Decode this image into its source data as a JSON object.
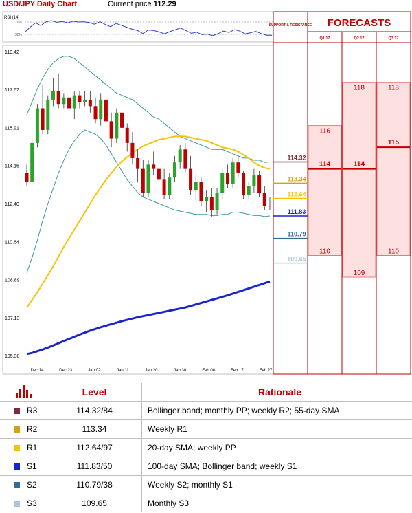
{
  "header": {
    "title": "USD/JPY Daily Chart",
    "price_label": "Current price",
    "price_value": "112.29"
  },
  "colors": {
    "red": "#c00000",
    "sma20": "#f5c400",
    "sma100": "#1a24c8",
    "bollinger": "#3a9aa0",
    "candle_up": "#2aa52a",
    "candle_down": "#c00000"
  },
  "chart_data": {
    "type": "line",
    "title": "USD/JPY Daily Chart",
    "rsi_panel": {
      "label": "RSI (14)",
      "ticks": [
        "70%",
        "30%"
      ]
    },
    "y_ticks": [
      "119.42",
      "117.67",
      "115.91",
      "114.16",
      "112.40",
      "110.64",
      "108.89",
      "107.13",
      "105.38"
    ],
    "ylim": [
      105.38,
      119.42
    ],
    "x_ticks": [
      "Dec 14",
      "Dec 23",
      "Jan 02",
      "Jan 11",
      "Jan 20",
      "Jan 30",
      "Feb 08",
      "Feb 17",
      "Feb 27"
    ],
    "candles": [
      [
        113.8,
        114.2,
        113.2,
        113.4
      ],
      [
        113.4,
        115.4,
        113.4,
        115.2
      ],
      [
        115.2,
        117.0,
        115.0,
        116.8
      ],
      [
        116.8,
        117.9,
        115.6,
        115.8
      ],
      [
        115.8,
        117.4,
        115.6,
        117.2
      ],
      [
        117.2,
        118.2,
        116.9,
        117.6
      ],
      [
        117.6,
        118.4,
        116.8,
        117.0
      ],
      [
        117.0,
        117.5,
        116.8,
        117.3
      ],
      [
        117.3,
        117.8,
        116.6,
        116.8
      ],
      [
        116.8,
        117.6,
        116.3,
        117.4
      ],
      [
        117.4,
        117.6,
        116.8,
        117.1
      ],
      [
        117.1,
        117.6,
        116.9,
        117.2
      ],
      [
        117.2,
        117.6,
        116.6,
        116.9
      ],
      [
        116.9,
        117.3,
        116.1,
        116.3
      ],
      [
        116.3,
        117.5,
        116.0,
        117.2
      ],
      [
        117.2,
        118.5,
        116.0,
        116.2
      ],
      [
        116.2,
        116.6,
        115.0,
        115.4
      ],
      [
        115.4,
        116.8,
        115.2,
        116.6
      ],
      [
        116.6,
        117.0,
        115.6,
        115.9
      ],
      [
        115.9,
        116.1,
        114.8,
        115.2
      ],
      [
        115.2,
        115.7,
        114.2,
        114.5
      ],
      [
        114.5,
        114.9,
        113.4,
        114.0
      ],
      [
        114.0,
        114.4,
        112.7,
        112.9
      ],
      [
        112.9,
        114.4,
        112.7,
        114.2
      ],
      [
        114.2,
        114.8,
        113.7,
        114.0
      ],
      [
        114.0,
        114.9,
        113.2,
        113.5
      ],
      [
        113.5,
        114.0,
        112.6,
        112.8
      ],
      [
        112.8,
        113.8,
        112.6,
        113.6
      ],
      [
        113.6,
        114.6,
        113.4,
        114.3
      ],
      [
        114.3,
        115.1,
        114.0,
        114.9
      ],
      [
        114.9,
        115.2,
        113.8,
        114.0
      ],
      [
        114.0,
        114.6,
        112.8,
        113.0
      ],
      [
        113.0,
        113.7,
        112.6,
        113.4
      ],
      [
        113.4,
        113.6,
        112.3,
        112.5
      ],
      [
        112.5,
        113.0,
        112.0,
        112.7
      ],
      [
        112.7,
        113.1,
        111.8,
        112.1
      ],
      [
        112.1,
        113.1,
        111.9,
        112.9
      ],
      [
        112.9,
        114.0,
        112.6,
        113.8
      ],
      [
        113.8,
        114.2,
        113.1,
        113.3
      ],
      [
        113.3,
        114.5,
        113.1,
        114.3
      ],
      [
        114.3,
        114.6,
        113.6,
        113.8
      ],
      [
        113.8,
        113.9,
        112.6,
        112.8
      ],
      [
        112.8,
        113.4,
        112.6,
        113.2
      ],
      [
        113.2,
        114.0,
        112.9,
        113.7
      ],
      [
        113.7,
        113.9,
        112.7,
        112.9
      ],
      [
        112.9,
        113.2,
        112.1,
        112.3
      ],
      [
        112.3,
        112.7,
        112.1,
        112.29
      ]
    ],
    "sma20": [
      107.6,
      107.95,
      108.3,
      108.7,
      109.1,
      109.5,
      109.95,
      110.4,
      110.8,
      111.2,
      111.6,
      112.0,
      112.4,
      112.8,
      113.15,
      113.5,
      113.8,
      114.1,
      114.35,
      114.55,
      114.75,
      114.9,
      115.05,
      115.15,
      115.25,
      115.35,
      115.4,
      115.45,
      115.5,
      115.5,
      115.5,
      115.45,
      115.4,
      115.35,
      115.3,
      115.2,
      115.1,
      115.0,
      114.95,
      114.9,
      114.8,
      114.65,
      114.5,
      114.3,
      114.15,
      114.05,
      114.0
    ],
    "sma100": [
      105.45,
      105.5,
      105.58,
      105.66,
      105.75,
      105.85,
      105.95,
      106.05,
      106.15,
      106.25,
      106.35,
      106.44,
      106.53,
      106.61,
      106.69,
      106.76,
      106.83,
      106.9,
      106.97,
      107.03,
      107.09,
      107.15,
      107.2,
      107.25,
      107.3,
      107.35,
      107.4,
      107.45,
      107.5,
      107.55,
      107.6,
      107.67,
      107.74,
      107.81,
      107.88,
      107.95,
      108.02,
      108.09,
      108.16,
      108.24,
      108.32,
      108.4,
      108.48,
      108.56,
      108.64,
      108.72,
      108.8
    ],
    "bb_upper": [
      116.5,
      117.1,
      117.7,
      118.2,
      118.6,
      118.9,
      119.1,
      119.2,
      119.2,
      119.1,
      118.9,
      118.7,
      118.5,
      118.3,
      118.1,
      117.9,
      117.7,
      117.5,
      117.4,
      117.3,
      117.2,
      117.0,
      116.8,
      116.6,
      116.4,
      116.3,
      116.1,
      115.9,
      115.7,
      115.5,
      115.4,
      115.3,
      115.2,
      115.1,
      115.0,
      114.9,
      114.9,
      114.9,
      114.8,
      114.7,
      114.6,
      114.5,
      114.5,
      114.4,
      114.4,
      114.3,
      114.32
    ],
    "bb_lower": [
      109.2,
      109.9,
      110.7,
      111.6,
      112.4,
      113.1,
      113.8,
      114.4,
      114.9,
      115.3,
      115.6,
      115.8,
      115.7,
      115.6,
      115.4,
      115.1,
      114.7,
      114.3,
      113.9,
      113.5,
      113.2,
      112.9,
      112.7,
      112.6,
      112.5,
      112.4,
      112.3,
      112.2,
      112.1,
      112.05,
      112.0,
      111.95,
      111.9,
      111.9,
      111.9,
      111.85,
      111.85,
      111.9,
      111.9,
      112.0,
      112.0,
      111.95,
      111.9,
      111.85,
      111.85,
      111.8,
      111.83
    ],
    "levels": [
      {
        "value": "114.32",
        "color": "#7b2c34"
      },
      {
        "value": "113.34",
        "color": "#d4a017"
      },
      {
        "value": "112.64",
        "color": "#f5c400"
      },
      {
        "value": "111.83",
        "color": "#1a24c8"
      },
      {
        "value": "110.79",
        "color": "#2e6f9a"
      },
      {
        "value": "109.65",
        "color": "#a9c7d8"
      }
    ],
    "forecasts": {
      "title": "FORECASTS",
      "support_label": "SUPPORT & RESISTANCE",
      "columns": [
        {
          "label": "Q1 17",
          "high": "116",
          "avg": "114",
          "low": "110"
        },
        {
          "label": "Q2 17",
          "high": "118",
          "avg": "114",
          "low": "109"
        },
        {
          "label": "Q3 17",
          "high": "118",
          "avg": "115",
          "low": "110"
        }
      ]
    }
  },
  "table": {
    "headers": {
      "level": "Level",
      "rationale": "Rationale"
    },
    "rows": [
      {
        "code": "R3",
        "color": "#7b2c34",
        "level": "114.32/84",
        "rationale": "Bollinger band; monthly PP; weekly R2; 55-day SMA"
      },
      {
        "code": "R2",
        "color": "#d4a017",
        "level": "113.34",
        "rationale": "Weekly R1"
      },
      {
        "code": "R1",
        "color": "#f5c400",
        "level": "112.64/97",
        "rationale": "20-day SMA; weekly PP"
      },
      {
        "code": "S1",
        "color": "#1a24c8",
        "level": "111.83/50",
        "rationale": "100-day SMA; Bollinger band; weekly S1"
      },
      {
        "code": "S2",
        "color": "#2e6f9a",
        "level": "110.79/38",
        "rationale": "Weekly S2; monthly S1"
      },
      {
        "code": "S3",
        "color": "#a9c7d8",
        "level": "109.65",
        "rationale": "Monthly S3"
      }
    ]
  }
}
